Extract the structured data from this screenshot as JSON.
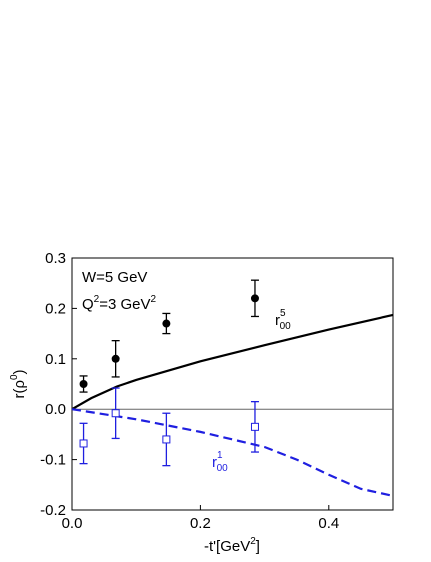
{
  "chart_data": {
    "type": "line",
    "xlim": [
      0.0,
      0.5
    ],
    "ylim": [
      -0.2,
      0.3
    ],
    "xticks": [
      {
        "value": 0.0,
        "label": "0.0"
      },
      {
        "value": 0.2,
        "label": "0.2"
      },
      {
        "value": 0.4,
        "label": "0.4"
      }
    ],
    "yticks": [
      0.3,
      0.2,
      0.1,
      {
        "value": 0.0,
        "label": "0.0"
      },
      -0.1,
      -0.2
    ],
    "xlabel": [
      "-t'[GeV",
      "2",
      "]"
    ],
    "ylabel": [
      "r(ρ",
      "0",
      ")"
    ],
    "annotations": {
      "w": "W=5 GeV",
      "q": [
        "Q",
        "2",
        "=3 GeV",
        "2"
      ],
      "r5": [
        "r",
        "5",
        "00"
      ],
      "r1": [
        "r",
        "1",
        "00"
      ]
    },
    "zero_line": true,
    "series": [
      {
        "color": "#000000",
        "style": "solid",
        "x": [
          0,
          0.03,
          0.07,
          0.1,
          0.2,
          0.3,
          0.4,
          0.5
        ],
        "values": [
          0,
          0.022,
          0.045,
          0.058,
          0.095,
          0.127,
          0.158,
          0.187
        ]
      },
      {
        "color": "#1f1fe0",
        "style": "dashed",
        "x": [
          0,
          0.1,
          0.2,
          0.3,
          0.35,
          0.4,
          0.45,
          0.5
        ],
        "values": [
          0,
          -0.02,
          -0.045,
          -0.075,
          -0.1,
          -0.13,
          -0.158,
          -0.172
        ]
      },
      {
        "color": "#000000",
        "marker": "filled-circle",
        "x": [
          0.018,
          0.068,
          0.147,
          0.285
        ],
        "values": [
          0.05,
          0.1,
          0.17,
          0.22
        ],
        "errors": [
          0.016,
          0.036,
          0.02,
          0.036
        ]
      },
      {
        "color": "#1f1fe0",
        "marker": "open-square",
        "x": [
          0.018,
          0.068,
          0.147,
          0.285
        ],
        "values": [
          -0.068,
          -0.008,
          -0.06,
          -0.035
        ],
        "errors": [
          0.04,
          0.05,
          0.052,
          0.05
        ]
      }
    ]
  }
}
